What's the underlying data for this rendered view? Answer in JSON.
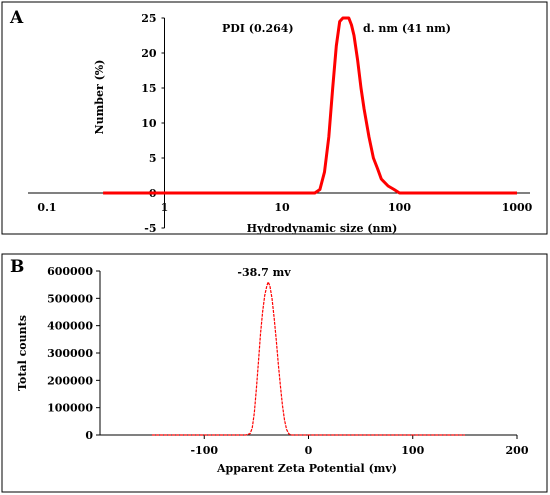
{
  "chart_data": [
    {
      "panel": "A",
      "type": "line",
      "xscale": "log",
      "xlabel": "Hydrodynamic size (nm)",
      "ylabel": "Number (%)",
      "xlim": [
        0.1,
        1000
      ],
      "ylim": [
        -5,
        25
      ],
      "x_ticks": [
        "0.1",
        "1",
        "10",
        "100",
        "1000"
      ],
      "y_ticks": [
        "-5",
        "0",
        "5",
        "10",
        "15",
        "20",
        "25"
      ],
      "annotations": [
        "PDI (0.264)",
        "d. nm (41 nm)"
      ],
      "color": "#ff0000",
      "series": [
        {
          "x": [
            0.3,
            1,
            5,
            10,
            15,
            19,
            21,
            23,
            25,
            27,
            29,
            31,
            33,
            35,
            37,
            39,
            41,
            44,
            47,
            50,
            55,
            60,
            65,
            70,
            80,
            90,
            100,
            130,
            200,
            500,
            1000
          ],
          "y": [
            0,
            0,
            0,
            0,
            0,
            0,
            0.5,
            3,
            8,
            15,
            21,
            24.5,
            25,
            25,
            25,
            24,
            22.5,
            19,
            15,
            12,
            8,
            5,
            3.5,
            2,
            1,
            0.5,
            0,
            0,
            0,
            0,
            0
          ]
        }
      ]
    },
    {
      "panel": "B",
      "type": "line",
      "xlabel": "Apparent Zeta Potential (mv)",
      "ylabel": "Total counts",
      "xlim": [
        -200,
        200
      ],
      "ylim": [
        0,
        600000
      ],
      "x_ticks": [
        "-100",
        "0",
        "100",
        "200"
      ],
      "y_ticks": [
        "0",
        "100000",
        "200000",
        "300000",
        "400000",
        "500000",
        "600000"
      ],
      "annotations": [
        "-38.7 mv"
      ],
      "color": "#ff0000",
      "series": [
        {
          "x": [
            -150,
            -80,
            -60,
            -56,
            -54,
            -52,
            -50,
            -48,
            -46,
            -44,
            -42,
            -40,
            -38.7,
            -37,
            -35,
            -33,
            -31,
            -29,
            -27,
            -25,
            -23,
            -21,
            -19,
            -17,
            0,
            100,
            150
          ],
          "y": [
            0,
            0,
            0,
            5000,
            25000,
            80000,
            170000,
            270000,
            370000,
            450000,
            510000,
            545000,
            560000,
            545000,
            500000,
            430000,
            350000,
            260000,
            180000,
            110000,
            55000,
            20000,
            5000,
            0,
            0,
            0,
            0
          ]
        }
      ]
    }
  ]
}
